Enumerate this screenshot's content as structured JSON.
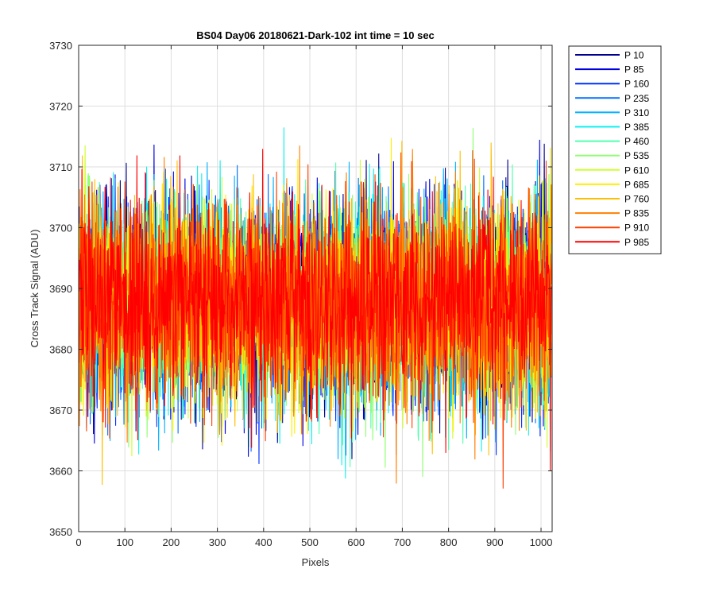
{
  "chart_data": {
    "type": "line",
    "title": "BS04 Day06 20180621-Dark-102 int time = 10 sec",
    "xlabel": "Pixels",
    "ylabel": "Cross Track Signal (ADU)",
    "xlim": [
      0,
      1024
    ],
    "ylim": [
      3650,
      3730
    ],
    "xticks": [
      0,
      100,
      200,
      300,
      400,
      500,
      600,
      700,
      800,
      900,
      1000
    ],
    "yticks": [
      3650,
      3660,
      3670,
      3680,
      3690,
      3700,
      3710,
      3720,
      3730
    ],
    "grid": true,
    "legend_position": "outside-top-right",
    "n_points": 1024,
    "mean": 3687.5,
    "noise_std": 8.5,
    "series": [
      {
        "name": "P 10",
        "color": "#00008f",
        "seed": 11
      },
      {
        "name": "P 85",
        "color": "#0000df",
        "seed": 23
      },
      {
        "name": "P 160",
        "color": "#0030ff",
        "seed": 37
      },
      {
        "name": "P 235",
        "color": "#0070ff",
        "seed": 41
      },
      {
        "name": "P 310",
        "color": "#00afff",
        "seed": 53
      },
      {
        "name": "P 385",
        "color": "#10efef",
        "seed": 67
      },
      {
        "name": "P 460",
        "color": "#50ffaf",
        "seed": 71
      },
      {
        "name": "P 535",
        "color": "#8fff70",
        "seed": 83
      },
      {
        "name": "P 610",
        "color": "#cfff30",
        "seed": 97
      },
      {
        "name": "P 685",
        "color": "#ffef00",
        "seed": 101
      },
      {
        "name": "P 760",
        "color": "#ffbf00",
        "seed": 113
      },
      {
        "name": "P 835",
        "color": "#ff8000",
        "seed": 127
      },
      {
        "name": "P 910",
        "color": "#ff4000",
        "seed": 131
      },
      {
        "name": "P 985",
        "color": "#ff0000",
        "seed": 149
      }
    ]
  }
}
